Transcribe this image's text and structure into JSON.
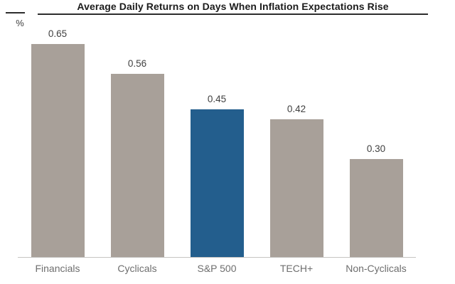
{
  "chart_data": {
    "type": "bar",
    "title": "Average Daily Returns on Days When Inflation Expectations Rise",
    "ylabel": "%",
    "xlabel": "",
    "categories": [
      "Financials",
      "Cyclicals",
      "S&P 500",
      "TECH+",
      "Non-Cyclicals"
    ],
    "values": [
      0.65,
      0.56,
      0.45,
      0.42,
      0.3
    ],
    "value_labels": [
      "0.65",
      "0.56",
      "0.45",
      "0.42",
      "0.30"
    ],
    "bar_colors": [
      "#a8a099",
      "#a8a099",
      "#235e8d",
      "#a8a099",
      "#a8a099"
    ],
    "highlighted_category": "S&P 500",
    "ylim": [
      0,
      0.78
    ],
    "grid": false,
    "legend": false
  },
  "colors": {
    "bar_default": "#a8a099",
    "bar_highlight": "#235e8d",
    "axis_line": "#c6c4c2",
    "title_text": "#1c1c1c",
    "header_rule": "#2d2d2d",
    "value_label_text": "#404040",
    "tick_label_text": "#6e6e6e",
    "background": "#ffffff"
  }
}
